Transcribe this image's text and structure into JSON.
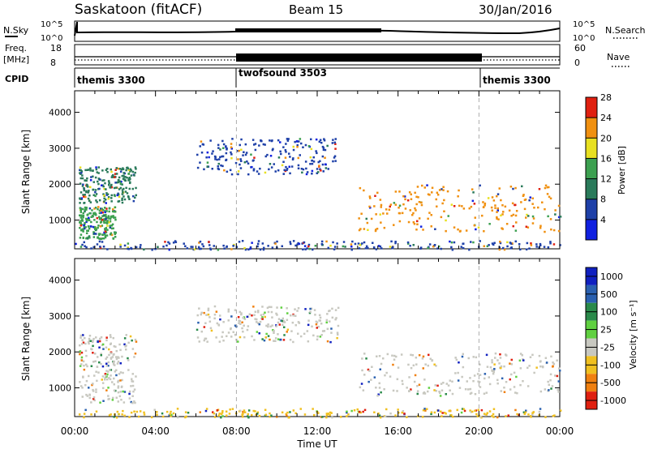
{
  "header": {
    "station": "Saskatoon (fitACF)",
    "beam": "Beam 15",
    "date": "30/Jan/2016"
  },
  "top_panels": {
    "nsky_label": "N.Sky",
    "nsky_ticks": [
      "10^5",
      "10^0"
    ],
    "nsearch_label": "N.Search",
    "nsearch_ticks": [
      "10^5",
      "10^0"
    ],
    "freq_label": "Freq.",
    "freq_unit": "[MHz]",
    "freq_ticks": [
      "18",
      "8"
    ],
    "nave_label": "Nave",
    "nave_ticks": [
      "60",
      "0"
    ],
    "cpid_label": "CPID",
    "cpid_segments": [
      {
        "label": "themis 3300",
        "start": 0,
        "end": 8
      },
      {
        "label": "twofsound 3503",
        "start": 8,
        "end": 20
      },
      {
        "label": "themis 3300",
        "start": 20,
        "end": 24
      }
    ]
  },
  "chart_data": [
    {
      "type": "heatmap",
      "name": "Power",
      "ylabel": "Slant Range [km]",
      "yticks": [
        1000,
        2000,
        3000,
        4000
      ],
      "ylim": [
        200,
        4600
      ],
      "xlim": [
        0,
        24
      ],
      "colorbar_label": "Power [dB]",
      "colorbar_ticks": [
        4,
        8,
        12,
        16,
        20,
        24,
        28
      ],
      "colorbar_colors": [
        "#1020e0",
        "#1e40a8",
        "#2a7a5a",
        "#3ca050",
        "#e8e020",
        "#f09010",
        "#e02010"
      ],
      "dashed_lines_at": [
        8,
        20
      ],
      "regions": [
        {
          "t": [
            0.2,
            3.0
          ],
          "r": [
            1500,
            2500
          ],
          "color": "#2a7a5a"
        },
        {
          "t": [
            0.2,
            2.0
          ],
          "r": [
            500,
            1400
          ],
          "color": "#3ca050"
        },
        {
          "t": [
            6.0,
            13.0
          ],
          "r": [
            2300,
            3300
          ],
          "color": "#1e40a8"
        },
        {
          "t": [
            14.0,
            24.0
          ],
          "r": [
            700,
            2000
          ],
          "color": "#f09010"
        },
        {
          "t": [
            0.0,
            24.0
          ],
          "r": [
            200,
            450
          ],
          "color": "#1e40a8"
        }
      ]
    },
    {
      "type": "heatmap",
      "name": "Velocity",
      "ylabel": "Slant Range [km]",
      "xlabel": "Time UT",
      "yticks": [
        1000,
        2000,
        3000,
        4000
      ],
      "ylim": [
        200,
        4600
      ],
      "xlim": [
        0,
        24
      ],
      "xticks": [
        "00:00",
        "04:00",
        "08:00",
        "12:00",
        "16:00",
        "20:00",
        "00:00"
      ],
      "colorbar_label": "Velocity [m s⁻¹]",
      "colorbar_ticks": [
        "1000",
        "500",
        "100",
        "25",
        "-25",
        "-100",
        "-500",
        "-1000"
      ],
      "colorbar_colors": [
        "#1020c0",
        "#2a60b0",
        "#2a8a4a",
        "#60d040",
        "#c8c8c0",
        "#f0c020",
        "#f08010",
        "#e02010"
      ],
      "dashed_lines_at": [
        8,
        20
      ],
      "regions": [
        {
          "t": [
            0.2,
            3.0
          ],
          "r": [
            600,
            2500
          ],
          "color": "#c8c8c0"
        },
        {
          "t": [
            6.0,
            13.0
          ],
          "r": [
            2300,
            3300
          ],
          "color": "#c8c8c0"
        },
        {
          "t": [
            14.0,
            24.0
          ],
          "r": [
            800,
            2000
          ],
          "color": "#c8c8c0"
        },
        {
          "t": [
            0.0,
            24.0
          ],
          "r": [
            200,
            450
          ],
          "color": "#f0c020"
        }
      ]
    }
  ]
}
